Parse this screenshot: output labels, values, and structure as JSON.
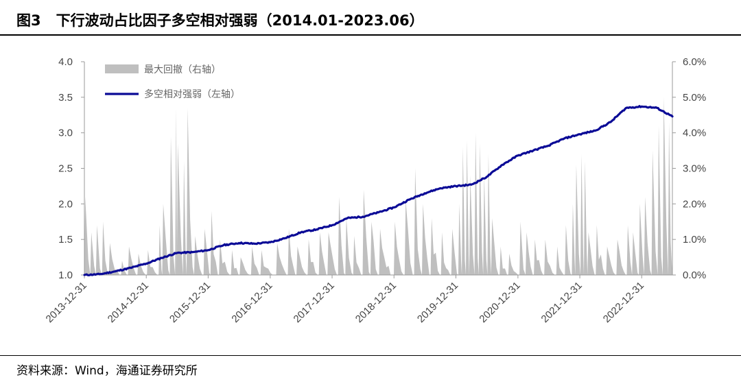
{
  "header": {
    "figure_no": "图3",
    "title": "下行波动占比因子多空相对强弱（2014.01-2023.06）"
  },
  "footer": {
    "source": "资料来源：Wind，海通证券研究所"
  },
  "colors": {
    "line": "#0a0a96",
    "area": "#bfbfbf"
  },
  "chart_data": {
    "type": "line",
    "x_ticks": [
      "2013-12-31",
      "2014-12-31",
      "2015-12-31",
      "2016-12-31",
      "2017-12-31",
      "2018-12-31",
      "2019-12-31",
      "2020-12-31",
      "2021-12-31",
      "2022-12-31"
    ],
    "y_left_ticks": [
      "1.0",
      "1.5",
      "2.0",
      "2.5",
      "3.0",
      "3.5",
      "4.0"
    ],
    "y_right_ticks": [
      "0.0%",
      "1.0%",
      "2.0%",
      "3.0%",
      "4.0%",
      "5.0%",
      "6.0%"
    ],
    "y_left_range": [
      1.0,
      4.0
    ],
    "y_right_range": [
      0.0,
      0.06
    ],
    "x_range": [
      "2013-12-31",
      "2023-06-30"
    ],
    "legend": [
      {
        "label": "最大回撤（右轴）",
        "kind": "area"
      },
      {
        "label": "多空相对强弱（左轴）",
        "kind": "line"
      }
    ],
    "line_series": {
      "name": "多空相对强弱（左轴）",
      "points": [
        [
          "2013-12-31",
          1.0
        ],
        [
          "2014-03-31",
          1.01
        ],
        [
          "2014-06-30",
          1.05
        ],
        [
          "2014-09-30",
          1.1
        ],
        [
          "2014-12-31",
          1.16
        ],
        [
          "2015-03-31",
          1.24
        ],
        [
          "2015-06-30",
          1.31
        ],
        [
          "2015-09-30",
          1.32
        ],
        [
          "2015-12-31",
          1.35
        ],
        [
          "2016-03-31",
          1.42
        ],
        [
          "2016-06-30",
          1.45
        ],
        [
          "2016-09-30",
          1.44
        ],
        [
          "2016-12-31",
          1.46
        ],
        [
          "2017-03-31",
          1.52
        ],
        [
          "2017-06-30",
          1.6
        ],
        [
          "2017-09-30",
          1.64
        ],
        [
          "2017-12-31",
          1.7
        ],
        [
          "2018-03-31",
          1.8
        ],
        [
          "2018-06-30",
          1.82
        ],
        [
          "2018-09-30",
          1.88
        ],
        [
          "2018-12-31",
          1.95
        ],
        [
          "2019-03-31",
          2.06
        ],
        [
          "2019-06-30",
          2.15
        ],
        [
          "2019-09-30",
          2.22
        ],
        [
          "2019-12-31",
          2.25
        ],
        [
          "2020-03-31",
          2.27
        ],
        [
          "2020-06-30",
          2.38
        ],
        [
          "2020-09-30",
          2.55
        ],
        [
          "2020-12-31",
          2.68
        ],
        [
          "2021-03-31",
          2.75
        ],
        [
          "2021-06-30",
          2.82
        ],
        [
          "2021-09-30",
          2.92
        ],
        [
          "2021-12-31",
          2.98
        ],
        [
          "2022-03-31",
          3.03
        ],
        [
          "2022-06-30",
          3.15
        ],
        [
          "2022-09-30",
          3.35
        ],
        [
          "2022-12-31",
          3.37
        ],
        [
          "2023-03-31",
          3.35
        ],
        [
          "2023-06-30",
          3.23
        ]
      ]
    },
    "area_series": {
      "name": "最大回撤（右轴）",
      "peaks": [
        [
          "2014-01-05",
          0.022
        ],
        [
          "2014-02-10",
          0.012
        ],
        [
          "2014-03-15",
          0.014
        ],
        [
          "2014-04-20",
          0.015
        ],
        [
          "2014-05-30",
          0.009
        ],
        [
          "2014-08-10",
          0.004
        ],
        [
          "2014-09-20",
          0.008
        ],
        [
          "2014-11-15",
          0.006
        ],
        [
          "2015-01-10",
          0.007
        ],
        [
          "2015-03-20",
          0.014
        ],
        [
          "2015-04-10",
          0.02
        ],
        [
          "2015-05-25",
          0.039
        ],
        [
          "2015-06-25",
          0.047
        ],
        [
          "2015-07-05",
          0.037
        ],
        [
          "2015-08-10",
          0.032
        ],
        [
          "2015-09-01",
          0.047
        ],
        [
          "2015-10-15",
          0.011
        ],
        [
          "2015-12-10",
          0.013
        ],
        [
          "2016-01-20",
          0.018
        ],
        [
          "2016-03-10",
          0.01
        ],
        [
          "2016-05-20",
          0.007
        ],
        [
          "2016-07-10",
          0.005
        ],
        [
          "2016-09-15",
          0.008
        ],
        [
          "2016-11-10",
          0.007
        ],
        [
          "2017-02-10",
          0.009
        ],
        [
          "2017-04-20",
          0.013
        ],
        [
          "2017-06-10",
          0.008
        ],
        [
          "2017-08-15",
          0.01
        ],
        [
          "2017-10-20",
          0.012
        ],
        [
          "2017-12-10",
          0.012
        ],
        [
          "2018-02-10",
          0.022
        ],
        [
          "2018-03-25",
          0.016
        ],
        [
          "2018-05-10",
          0.011
        ],
        [
          "2018-07-05",
          0.024
        ],
        [
          "2018-08-20",
          0.015
        ],
        [
          "2018-10-10",
          0.013
        ],
        [
          "2019-01-05",
          0.015
        ],
        [
          "2019-03-10",
          0.021
        ],
        [
          "2019-05-05",
          0.03
        ],
        [
          "2019-06-20",
          0.02
        ],
        [
          "2019-08-10",
          0.016
        ],
        [
          "2019-10-10",
          0.012
        ],
        [
          "2019-12-10",
          0.013
        ],
        [
          "2020-01-20",
          0.02
        ],
        [
          "2020-02-10",
          0.036
        ],
        [
          "2020-03-05",
          0.038
        ],
        [
          "2020-03-25",
          0.028
        ],
        [
          "2020-04-25",
          0.04
        ],
        [
          "2020-05-20",
          0.037
        ],
        [
          "2020-06-15",
          0.028
        ],
        [
          "2020-07-10",
          0.034
        ],
        [
          "2020-08-01",
          0.016
        ],
        [
          "2020-09-20",
          0.008
        ],
        [
          "2020-11-10",
          0.006
        ],
        [
          "2021-01-15",
          0.015
        ],
        [
          "2021-02-20",
          0.012
        ],
        [
          "2021-04-10",
          0.01
        ],
        [
          "2021-06-10",
          0.01
        ],
        [
          "2021-08-20",
          0.008
        ],
        [
          "2021-10-10",
          0.014
        ],
        [
          "2021-11-20",
          0.02
        ],
        [
          "2021-12-10",
          0.031
        ],
        [
          "2022-01-10",
          0.034
        ],
        [
          "2022-01-30",
          0.032
        ],
        [
          "2022-02-20",
          0.012
        ],
        [
          "2022-04-10",
          0.014
        ],
        [
          "2022-06-10",
          0.008
        ],
        [
          "2022-08-10",
          0.01
        ],
        [
          "2022-10-10",
          0.014
        ],
        [
          "2022-11-10",
          0.012
        ],
        [
          "2022-12-20",
          0.02
        ],
        [
          "2023-01-20",
          0.022
        ],
        [
          "2023-03-05",
          0.035
        ],
        [
          "2023-04-10",
          0.042
        ],
        [
          "2023-05-10",
          0.05
        ],
        [
          "2023-06-10",
          0.043
        ]
      ]
    }
  }
}
